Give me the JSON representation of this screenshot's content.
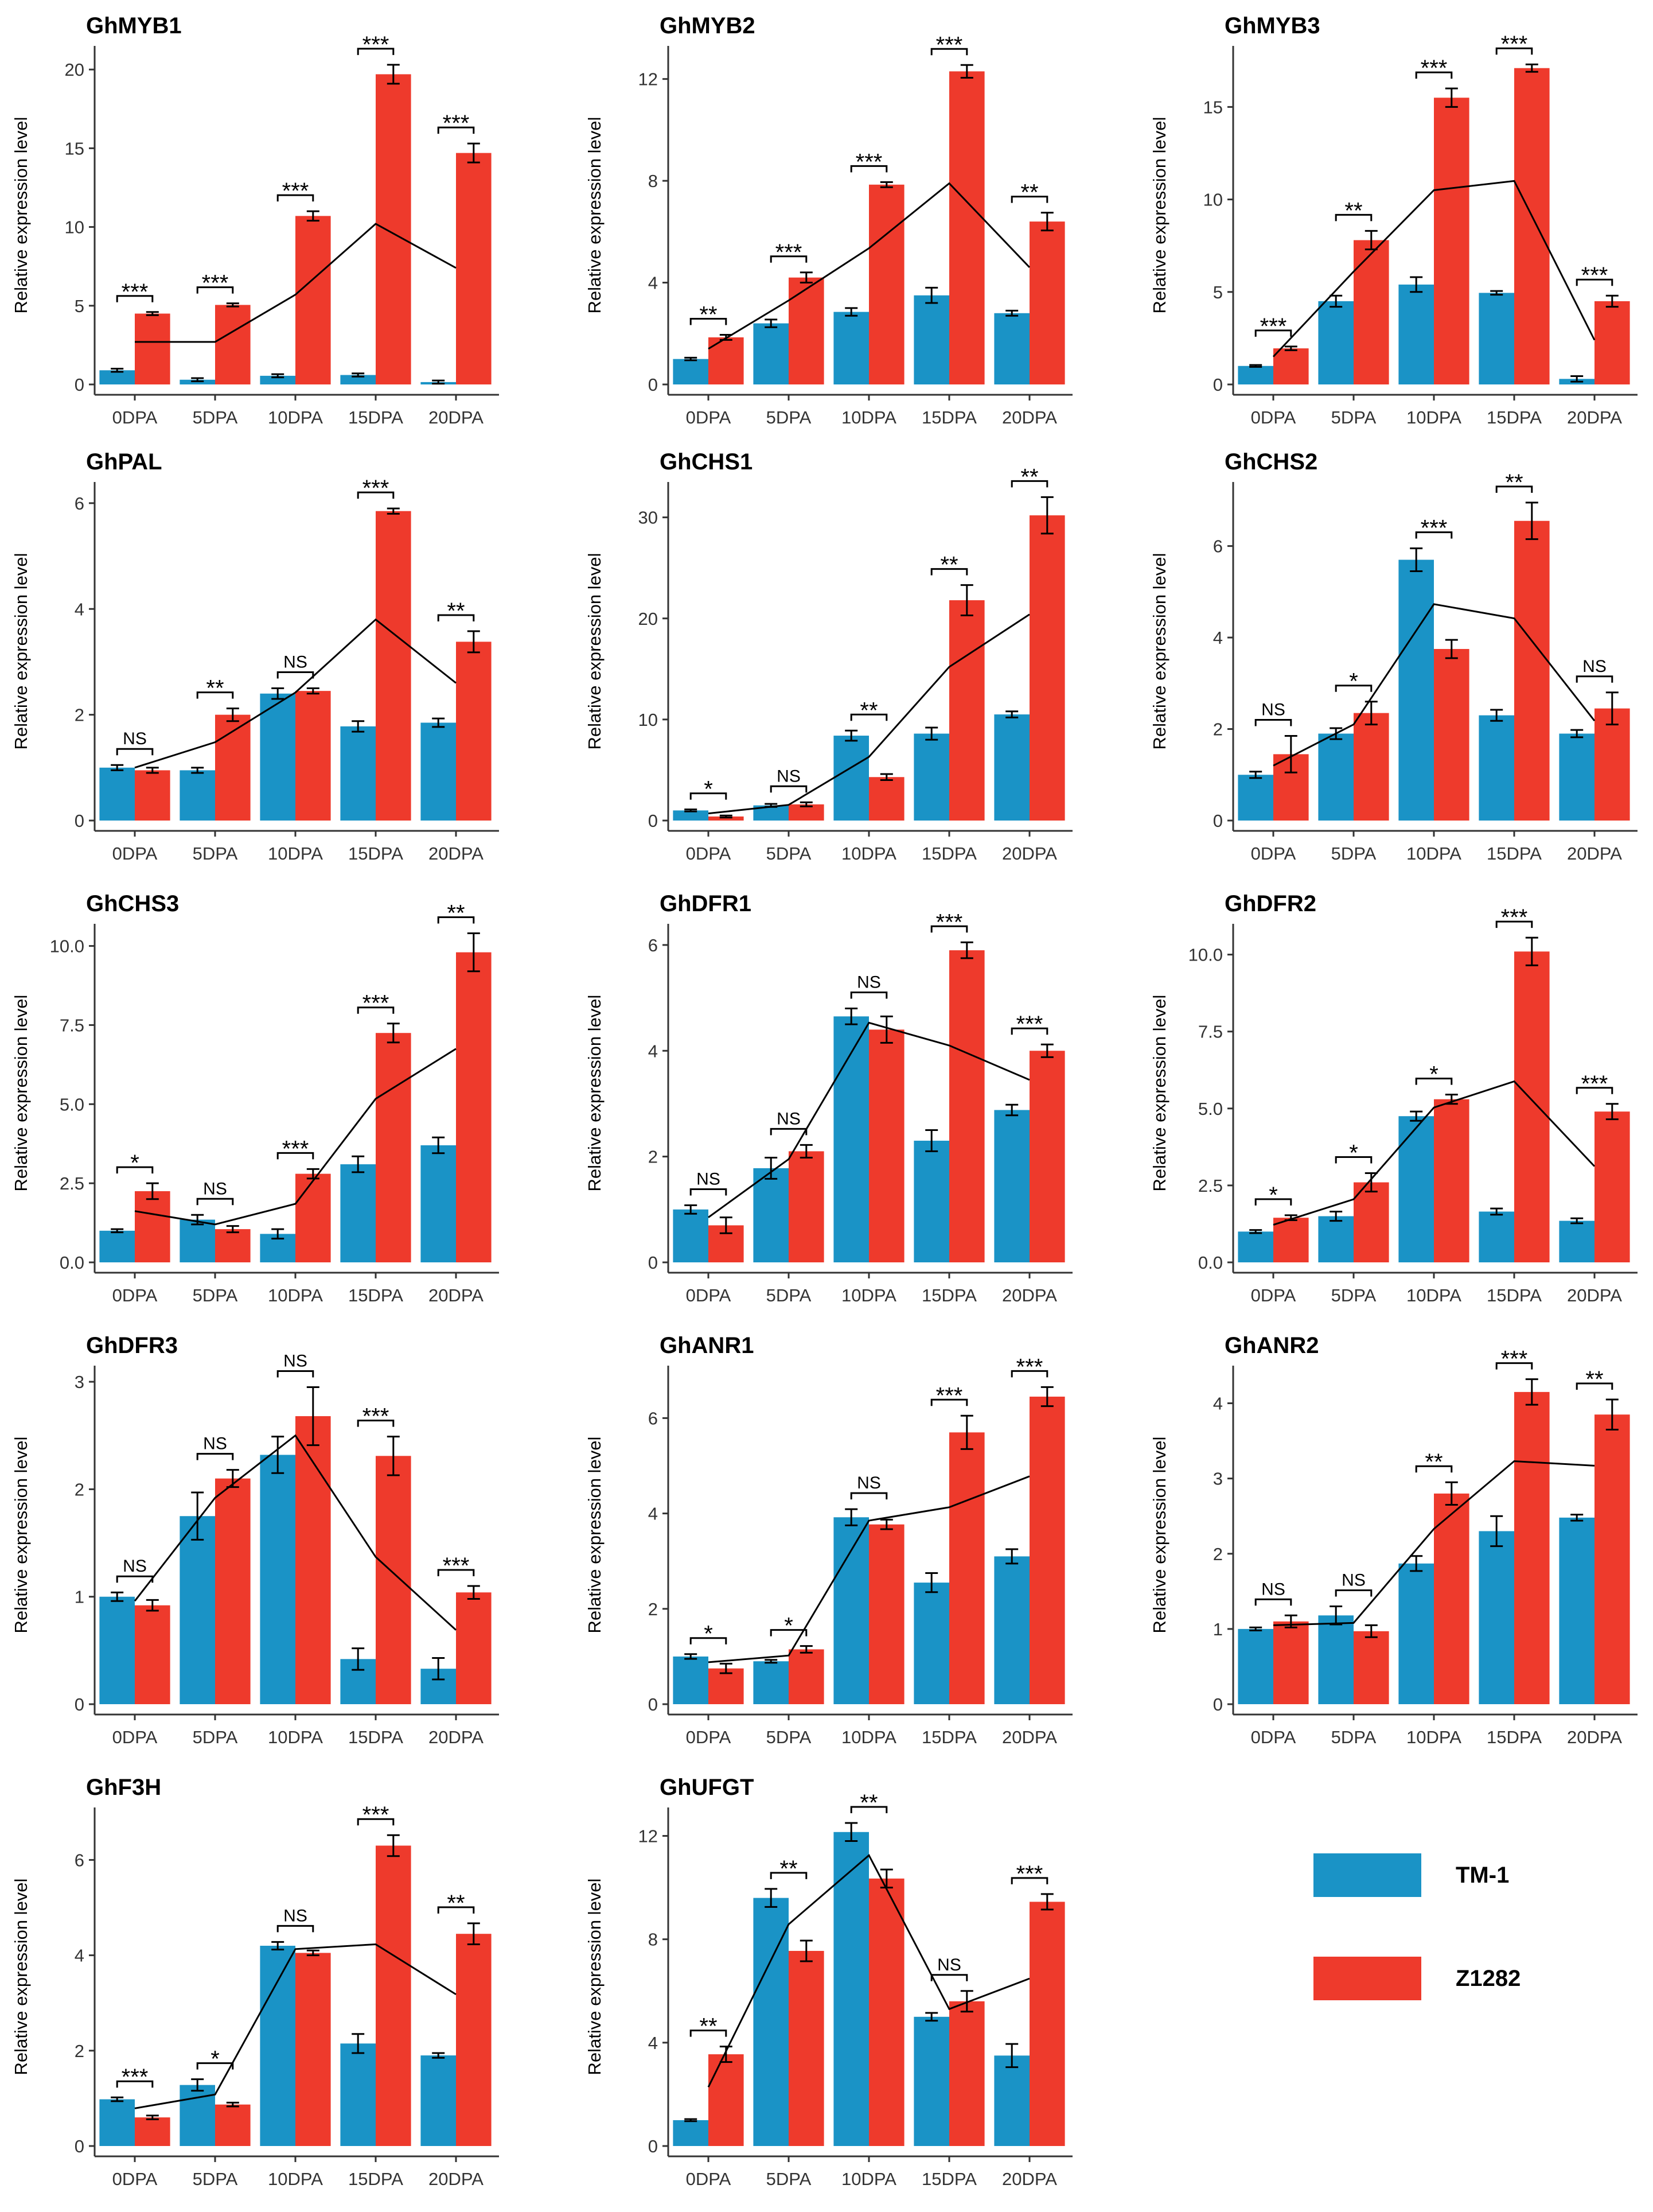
{
  "colors": {
    "tm1": "#1a93c6",
    "z1282": "#ee3a2c",
    "axis": "#333333",
    "text": "#000000"
  },
  "legend": [
    {
      "name": "TM-1",
      "color": "#1a93c6"
    },
    {
      "name": "Z1282",
      "color": "#ee3a2c"
    }
  ],
  "chart_data": [
    {
      "type": "bar",
      "title": "GhMYB1",
      "ylabel": "Relative expression level",
      "categories": [
        "0DPA",
        "5DPA",
        "10DPA",
        "15DPA",
        "20DPA"
      ],
      "yticks": [
        0,
        5,
        10,
        15,
        20
      ],
      "ytick_labels": [
        "0",
        "5",
        "10",
        "15",
        "20"
      ],
      "ylim": [
        0,
        21.5
      ],
      "series": [
        {
          "name": "TM-1",
          "values": [
            0.9,
            0.3,
            0.55,
            0.6,
            0.15
          ],
          "errors": [
            0.1,
            0.1,
            0.1,
            0.1,
            0.1
          ]
        },
        {
          "name": "Z1282",
          "values": [
            4.5,
            5.05,
            10.7,
            19.7,
            14.7
          ],
          "errors": [
            0.1,
            0.1,
            0.3,
            0.6,
            0.6
          ]
        }
      ],
      "line": [
        2.7,
        2.7,
        5.7,
        10.2,
        7.4
      ],
      "significance": [
        "***",
        "***",
        "***",
        "***",
        "***"
      ]
    },
    {
      "type": "bar",
      "title": "GhMYB2",
      "ylabel": "Relative expression level",
      "categories": [
        "0DPA",
        "5DPA",
        "10DPA",
        "15DPA",
        "20DPA"
      ],
      "yticks": [
        0,
        4,
        8,
        12
      ],
      "ytick_labels": [
        "0",
        "4",
        "8",
        "12"
      ],
      "ylim": [
        0,
        13.3
      ],
      "series": [
        {
          "name": "TM-1",
          "values": [
            1.0,
            2.4,
            2.85,
            3.5,
            2.8
          ],
          "errors": [
            0.05,
            0.15,
            0.15,
            0.3,
            0.1
          ]
        },
        {
          "name": "Z1282",
          "values": [
            1.85,
            4.2,
            7.85,
            12.3,
            6.4
          ],
          "errors": [
            0.1,
            0.2,
            0.1,
            0.25,
            0.35
          ]
        }
      ],
      "line": [
        1.4,
        3.3,
        5.35,
        7.9,
        4.6
      ],
      "significance": [
        "**",
        "***",
        "***",
        "***",
        "**"
      ]
    },
    {
      "type": "bar",
      "title": "GhMYB3",
      "ylabel": "Relative expression level",
      "categories": [
        "0DPA",
        "5DPA",
        "10DPA",
        "15DPA",
        "20DPA"
      ],
      "yticks": [
        0,
        5,
        10,
        15
      ],
      "ytick_labels": [
        "0",
        "5",
        "10",
        "15"
      ],
      "ylim": [
        0,
        18.3
      ],
      "series": [
        {
          "name": "TM-1",
          "values": [
            1.0,
            4.5,
            5.4,
            4.95,
            0.3
          ],
          "errors": [
            0.05,
            0.3,
            0.4,
            0.1,
            0.15
          ]
        },
        {
          "name": "Z1282",
          "values": [
            1.95,
            7.8,
            15.5,
            17.1,
            4.5
          ],
          "errors": [
            0.1,
            0.5,
            0.5,
            0.2,
            0.3
          ]
        }
      ],
      "line": [
        1.5,
        6.1,
        10.5,
        11.0,
        2.4
      ],
      "significance": [
        "***",
        "**",
        "***",
        "***",
        "***"
      ]
    },
    {
      "type": "bar",
      "title": "GhPAL",
      "ylabel": "Relative expression level",
      "categories": [
        "0DPA",
        "5DPA",
        "10DPA",
        "15DPA",
        "20DPA"
      ],
      "yticks": [
        0,
        2,
        4,
        6
      ],
      "ytick_labels": [
        "0",
        "2",
        "4",
        "6"
      ],
      "ylim": [
        0,
        6.4
      ],
      "series": [
        {
          "name": "TM-1",
          "values": [
            1.0,
            0.95,
            2.4,
            1.78,
            1.85
          ],
          "errors": [
            0.05,
            0.05,
            0.1,
            0.1,
            0.08
          ]
        },
        {
          "name": "Z1282",
          "values": [
            0.95,
            2.0,
            2.45,
            5.85,
            3.38
          ],
          "errors": [
            0.05,
            0.12,
            0.05,
            0.05,
            0.2
          ]
        }
      ],
      "line": [
        1.0,
        1.48,
        2.42,
        3.8,
        2.6
      ],
      "significance": [
        "NS",
        "**",
        "NS",
        "***",
        "**"
      ]
    },
    {
      "type": "bar",
      "title": "GhCHS1",
      "ylabel": "Relative expression level",
      "categories": [
        "0DPA",
        "5DPA",
        "10DPA",
        "15DPA",
        "20DPA"
      ],
      "yticks": [
        0,
        10,
        20,
        30
      ],
      "ytick_labels": [
        "0",
        "10",
        "20",
        "30"
      ],
      "ylim": [
        0,
        33.5
      ],
      "series": [
        {
          "name": "TM-1",
          "values": [
            1.0,
            1.5,
            8.4,
            8.6,
            10.5
          ],
          "errors": [
            0.1,
            0.15,
            0.5,
            0.6,
            0.3
          ]
        },
        {
          "name": "Z1282",
          "values": [
            0.4,
            1.6,
            4.3,
            21.8,
            30.2
          ],
          "errors": [
            0.1,
            0.2,
            0.3,
            1.5,
            1.8
          ]
        }
      ],
      "line": [
        0.7,
        1.55,
        6.3,
        15.2,
        20.4
      ],
      "significance": [
        "*",
        "NS",
        "**",
        "**",
        "**"
      ]
    },
    {
      "type": "bar",
      "title": "GhCHS2",
      "ylabel": "Relative expression level",
      "categories": [
        "0DPA",
        "5DPA",
        "10DPA",
        "15DPA",
        "20DPA"
      ],
      "yticks": [
        0,
        2,
        4,
        6
      ],
      "ytick_labels": [
        "0",
        "2",
        "4",
        "6"
      ],
      "ylim": [
        0,
        7.4
      ],
      "series": [
        {
          "name": "TM-1",
          "values": [
            1.0,
            1.9,
            5.7,
            2.3,
            1.9
          ],
          "errors": [
            0.07,
            0.12,
            0.25,
            0.12,
            0.08
          ]
        },
        {
          "name": "Z1282",
          "values": [
            1.45,
            2.35,
            3.75,
            6.55,
            2.45
          ],
          "errors": [
            0.4,
            0.25,
            0.2,
            0.4,
            0.35
          ]
        }
      ],
      "line": [
        1.2,
        2.1,
        4.73,
        4.42,
        2.18
      ],
      "significance": [
        "NS",
        "*",
        "***",
        "**",
        "NS"
      ]
    },
    {
      "type": "bar",
      "title": "GhCHS3",
      "ylabel": "Relative expression level",
      "categories": [
        "0DPA",
        "5DPA",
        "10DPA",
        "15DPA",
        "20DPA"
      ],
      "yticks": [
        0,
        2.5,
        5,
        7.5,
        10
      ],
      "ytick_labels": [
        "0.0",
        "2.5",
        "5.0",
        "7.5",
        "10.0"
      ],
      "ylim": [
        0,
        10.7
      ],
      "series": [
        {
          "name": "TM-1",
          "values": [
            1.0,
            1.35,
            0.9,
            3.1,
            3.7
          ],
          "errors": [
            0.05,
            0.15,
            0.15,
            0.25,
            0.25
          ]
        },
        {
          "name": "Z1282",
          "values": [
            2.25,
            1.05,
            2.8,
            7.25,
            9.8
          ],
          "errors": [
            0.25,
            0.1,
            0.15,
            0.3,
            0.6
          ]
        }
      ],
      "line": [
        1.62,
        1.2,
        1.85,
        5.17,
        6.75
      ],
      "significance": [
        "*",
        "NS",
        "***",
        "***",
        "**"
      ]
    },
    {
      "type": "bar",
      "title": "GhDFR1",
      "ylabel": "Relative expression level",
      "categories": [
        "0DPA",
        "5DPA",
        "10DPA",
        "15DPA",
        "20DPA"
      ],
      "yticks": [
        0,
        2,
        4,
        6
      ],
      "ytick_labels": [
        "0",
        "2",
        "4",
        "6"
      ],
      "ylim": [
        0,
        6.4
      ],
      "series": [
        {
          "name": "TM-1",
          "values": [
            1.0,
            1.78,
            4.65,
            2.3,
            2.88
          ],
          "errors": [
            0.08,
            0.2,
            0.15,
            0.2,
            0.1
          ]
        },
        {
          "name": "Z1282",
          "values": [
            0.7,
            2.1,
            4.4,
            5.9,
            4.0
          ],
          "errors": [
            0.15,
            0.12,
            0.25,
            0.15,
            0.12
          ]
        }
      ],
      "line": [
        0.85,
        1.95,
        4.53,
        4.1,
        3.45
      ],
      "significance": [
        "NS",
        "NS",
        "NS",
        "***",
        "***"
      ]
    },
    {
      "type": "bar",
      "title": "GhDFR2",
      "ylabel": "Relative expression level",
      "categories": [
        "0DPA",
        "5DPA",
        "10DPA",
        "15DPA",
        "20DPA"
      ],
      "yticks": [
        0,
        2.5,
        5,
        7.5,
        10
      ],
      "ytick_labels": [
        "0.0",
        "2.5",
        "5.0",
        "7.5",
        "10.0"
      ],
      "ylim": [
        0,
        11.0
      ],
      "series": [
        {
          "name": "TM-1",
          "values": [
            1.0,
            1.5,
            4.75,
            1.65,
            1.35
          ],
          "errors": [
            0.05,
            0.15,
            0.15,
            0.1,
            0.08
          ]
        },
        {
          "name": "Z1282",
          "values": [
            1.45,
            2.6,
            5.3,
            10.1,
            4.9
          ],
          "errors": [
            0.08,
            0.3,
            0.15,
            0.45,
            0.25
          ]
        }
      ],
      "line": [
        1.22,
        2.05,
        5.03,
        5.88,
        3.12
      ],
      "significance": [
        "*",
        "*",
        "*",
        "***",
        "***"
      ]
    },
    {
      "type": "bar",
      "title": "GhDFR3",
      "ylabel": "Relative expression level",
      "categories": [
        "0DPA",
        "5DPA",
        "10DPA",
        "15DPA",
        "20DPA"
      ],
      "yticks": [
        0,
        1,
        2,
        3
      ],
      "ytick_labels": [
        "0",
        "1",
        "2",
        "3"
      ],
      "ylim": [
        0,
        3.15
      ],
      "series": [
        {
          "name": "TM-1",
          "values": [
            1.0,
            1.75,
            2.32,
            0.42,
            0.33
          ],
          "errors": [
            0.04,
            0.22,
            0.17,
            0.1,
            0.1
          ]
        },
        {
          "name": "Z1282",
          "values": [
            0.92,
            2.1,
            2.68,
            2.31,
            1.04
          ],
          "errors": [
            0.05,
            0.08,
            0.27,
            0.18,
            0.06
          ]
        }
      ],
      "line": [
        0.96,
        1.92,
        2.5,
        1.37,
        0.69
      ],
      "significance": [
        "NS",
        "NS",
        "NS",
        "***",
        "***"
      ]
    },
    {
      "type": "bar",
      "title": "GhANR1",
      "ylabel": "Relative expression level",
      "categories": [
        "0DPA",
        "5DPA",
        "10DPA",
        "15DPA",
        "20DPA"
      ],
      "yticks": [
        0,
        2,
        4,
        6
      ],
      "ytick_labels": [
        "0",
        "2",
        "4",
        "6"
      ],
      "ylim": [
        0,
        7.1
      ],
      "series": [
        {
          "name": "TM-1",
          "values": [
            1.0,
            0.9,
            3.92,
            2.55,
            3.1
          ],
          "errors": [
            0.05,
            0.03,
            0.17,
            0.2,
            0.15
          ]
        },
        {
          "name": "Z1282",
          "values": [
            0.75,
            1.15,
            3.77,
            5.7,
            6.45
          ],
          "errors": [
            0.1,
            0.07,
            0.1,
            0.35,
            0.2
          ]
        }
      ],
      "line": [
        0.88,
        1.02,
        3.85,
        4.13,
        4.78
      ],
      "significance": [
        "*",
        "*",
        "NS",
        "***",
        "***"
      ]
    },
    {
      "type": "bar",
      "title": "GhANR2",
      "ylabel": "Relative expression level",
      "categories": [
        "0DPA",
        "5DPA",
        "10DPA",
        "15DPA",
        "20DPA"
      ],
      "yticks": [
        0,
        1,
        2,
        3,
        4
      ],
      "ytick_labels": [
        "0",
        "1",
        "2",
        "3",
        "4"
      ],
      "ylim": [
        0,
        4.5
      ],
      "series": [
        {
          "name": "TM-1",
          "values": [
            1.0,
            1.18,
            1.87,
            2.3,
            2.48
          ],
          "errors": [
            0.02,
            0.12,
            0.1,
            0.2,
            0.04
          ]
        },
        {
          "name": "Z1282",
          "values": [
            1.1,
            0.97,
            2.8,
            4.15,
            3.85
          ],
          "errors": [
            0.08,
            0.08,
            0.15,
            0.17,
            0.2
          ]
        }
      ],
      "line": [
        1.05,
        1.08,
        2.33,
        3.23,
        3.17
      ],
      "significance": [
        "NS",
        "NS",
        "**",
        "***",
        "**"
      ]
    },
    {
      "type": "bar",
      "title": "GhF3H",
      "ylabel": "Relative expression level",
      "categories": [
        "0DPA",
        "5DPA",
        "10DPA",
        "15DPA",
        "20DPA"
      ],
      "yticks": [
        0,
        2,
        4,
        6
      ],
      "ytick_labels": [
        "0",
        "2",
        "4",
        "6"
      ],
      "ylim": [
        0,
        7.1
      ],
      "series": [
        {
          "name": "TM-1",
          "values": [
            0.98,
            1.28,
            4.2,
            2.15,
            1.9
          ],
          "errors": [
            0.04,
            0.12,
            0.08,
            0.2,
            0.05
          ]
        },
        {
          "name": "Z1282",
          "values": [
            0.6,
            0.87,
            4.05,
            6.3,
            4.45
          ],
          "errors": [
            0.04,
            0.04,
            0.05,
            0.22,
            0.22
          ]
        }
      ],
      "line": [
        0.79,
        1.08,
        4.13,
        4.23,
        3.18
      ],
      "significance": [
        "***",
        "*",
        "NS",
        "***",
        "**"
      ]
    },
    {
      "type": "bar",
      "title": "GhUFGT",
      "ylabel": "Relative expression level",
      "categories": [
        "0DPA",
        "5DPA",
        "10DPA",
        "15DPA",
        "20DPA"
      ],
      "yticks": [
        0,
        4,
        8,
        12
      ],
      "ytick_labels": [
        "0",
        "4",
        "8",
        "12"
      ],
      "ylim": [
        0,
        13.1
      ],
      "series": [
        {
          "name": "TM-1",
          "values": [
            1.0,
            9.6,
            12.15,
            5.0,
            3.5
          ],
          "errors": [
            0.04,
            0.35,
            0.35,
            0.15,
            0.45
          ]
        },
        {
          "name": "Z1282",
          "values": [
            3.55,
            7.55,
            10.35,
            5.6,
            9.45
          ],
          "errors": [
            0.3,
            0.4,
            0.35,
            0.4,
            0.3
          ]
        }
      ],
      "line": [
        2.28,
        8.58,
        11.25,
        5.3,
        6.48
      ],
      "significance": [
        "**",
        "**",
        "**",
        "NS",
        "***"
      ]
    }
  ]
}
